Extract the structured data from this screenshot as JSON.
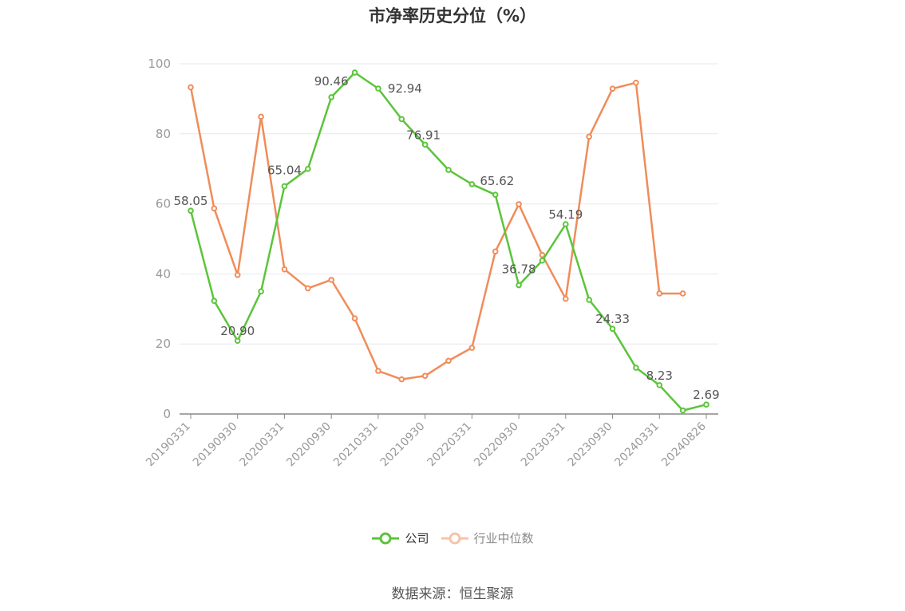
{
  "chart_data": {
    "type": "line",
    "title": "市净率历史分位（%）",
    "ylim": [
      0,
      100
    ],
    "yticks": [
      0,
      20,
      40,
      60,
      80,
      100
    ],
    "x_tick_labels": [
      "20190331",
      "20190930",
      "20200331",
      "20200930",
      "20210331",
      "20210930",
      "20220331",
      "20220930",
      "20230331",
      "20230930",
      "20240331",
      "20240826"
    ],
    "x": [
      "20190331",
      "20190630",
      "20190930",
      "20191231",
      "20200331",
      "20200630",
      "20200930",
      "20201231",
      "20210331",
      "20210630",
      "20210930",
      "20211231",
      "20220331",
      "20220630",
      "20220930",
      "20221231",
      "20230331",
      "20230630",
      "20230930",
      "20231231",
      "20240331",
      "20240630",
      "20240826"
    ],
    "grid": true,
    "legend_position": "bottom",
    "series": [
      {
        "name": "公司",
        "color": "#5cc43b",
        "values": [
          58.05,
          32.3,
          20.9,
          35.0,
          65.04,
          70.0,
          90.46,
          97.5,
          92.94,
          84.2,
          76.91,
          69.7,
          65.62,
          62.6,
          36.78,
          43.8,
          54.19,
          32.6,
          24.33,
          13.2,
          8.23,
          1.0,
          2.69
        ],
        "labels": {
          "0": "58.05",
          "2": "20.90",
          "4": "65.04",
          "6": "90.46",
          "8": "92.94",
          "10": "76.91",
          "12": "65.62",
          "14": "36.78",
          "16": "54.19",
          "18": "24.33",
          "20": "8.23",
          "22": "2.69"
        }
      },
      {
        "name": "行业中位数",
        "color": "#f08c5a",
        "values": [
          93.3,
          58.7,
          39.7,
          84.9,
          41.3,
          35.9,
          38.3,
          27.3,
          12.3,
          9.9,
          10.9,
          15.2,
          18.9,
          46.4,
          59.9,
          45.4,
          32.9,
          79.2,
          92.9,
          94.6,
          34.4,
          34.4,
          null
        ]
      }
    ]
  },
  "source_text": "数据来源：恒生聚源"
}
